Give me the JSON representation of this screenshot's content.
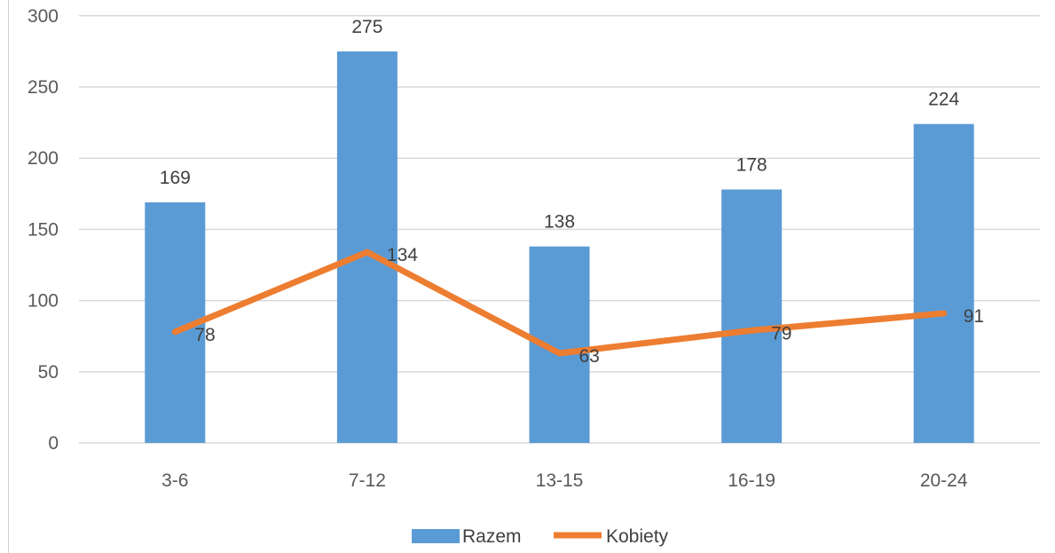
{
  "chart_data": {
    "type": "bar",
    "categories": [
      "3-6",
      "7-12",
      "13-15",
      "16-19",
      "20-24"
    ],
    "series": [
      {
        "name": "Razem",
        "type": "bar",
        "values": [
          169,
          275,
          138,
          178,
          224
        ],
        "color": "#5B9BD5"
      },
      {
        "name": "Kobiety",
        "type": "line",
        "values": [
          78,
          134,
          63,
          79,
          91
        ],
        "color": "#ED7D31"
      }
    ],
    "y_ticks": [
      0,
      50,
      100,
      150,
      200,
      250,
      300
    ],
    "ylim": [
      0,
      300
    ],
    "grid": true,
    "legend_position": "bottom",
    "gridline_color": "#d9d9d9"
  }
}
